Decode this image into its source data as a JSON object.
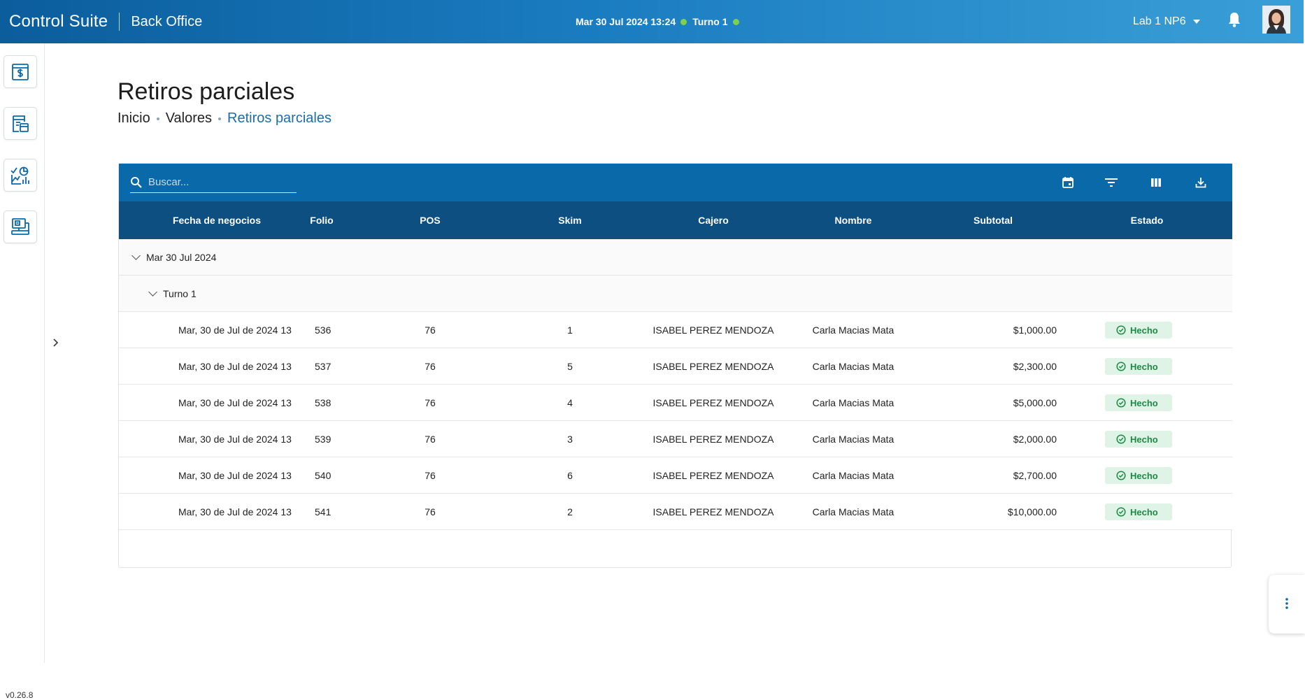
{
  "header": {
    "app_title": "Control Suite",
    "module": "Back Office",
    "datetime": "Mar 30 Jul 2024 13:24",
    "shift": "Turno 1",
    "branch": "Lab 1 NP6",
    "status_color": "#7cd34a"
  },
  "sidebar": {
    "items": [
      {
        "name": "cash-document-icon"
      },
      {
        "name": "report-icon"
      },
      {
        "name": "analytics-icon"
      },
      {
        "name": "pos-terminal-icon"
      }
    ],
    "version": "v0.26.8"
  },
  "page": {
    "title": "Retiros parciales",
    "breadcrumb": [
      "Inicio",
      "Valores",
      "Retiros parciales"
    ]
  },
  "toolbar": {
    "search_placeholder": "Buscar...",
    "tools": [
      "calendar-icon",
      "filter-icon",
      "columns-icon",
      "download-icon"
    ]
  },
  "table": {
    "columns": [
      "Fecha de negocios",
      "Folio",
      "POS",
      "Skim",
      "Cajero",
      "Nombre",
      "Subtotal",
      "Estado"
    ],
    "group_date": "Mar 30 Jul 2024",
    "group_shift": "Turno 1",
    "rows": [
      {
        "fecha": "Mar, 30 de Jul de 2024 13",
        "folio": "536",
        "pos": "76",
        "skim": "1",
        "cajero": "ISABEL PEREZ MENDOZA",
        "nombre": "Carla Macias Mata",
        "subtotal": "$1,000.00",
        "estado": "Hecho"
      },
      {
        "fecha": "Mar, 30 de Jul de 2024 13",
        "folio": "537",
        "pos": "76",
        "skim": "5",
        "cajero": "ISABEL PEREZ MENDOZA",
        "nombre": "Carla Macias Mata",
        "subtotal": "$2,300.00",
        "estado": "Hecho"
      },
      {
        "fecha": "Mar, 30 de Jul de 2024 13",
        "folio": "538",
        "pos": "76",
        "skim": "4",
        "cajero": "ISABEL PEREZ MENDOZA",
        "nombre": "Carla Macias Mata",
        "subtotal": "$5,000.00",
        "estado": "Hecho"
      },
      {
        "fecha": "Mar, 30 de Jul de 2024 13",
        "folio": "539",
        "pos": "76",
        "skim": "3",
        "cajero": "ISABEL PEREZ MENDOZA",
        "nombre": "Carla Macias Mata",
        "subtotal": "$2,000.00",
        "estado": "Hecho"
      },
      {
        "fecha": "Mar, 30 de Jul de 2024 13",
        "folio": "540",
        "pos": "76",
        "skim": "6",
        "cajero": "ISABEL PEREZ MENDOZA",
        "nombre": "Carla Macias Mata",
        "subtotal": "$2,700.00",
        "estado": "Hecho"
      },
      {
        "fecha": "Mar, 30 de Jul de 2024 13",
        "folio": "541",
        "pos": "76",
        "skim": "2",
        "cajero": "ISABEL PEREZ MENDOZA",
        "nombre": "Carla Macias Mata",
        "subtotal": "$10,000.00",
        "estado": "Hecho"
      }
    ]
  },
  "colors": {
    "toolbar": "#0a69a9",
    "table_header": "#0c4f80",
    "badge_bg": "#dff3e6",
    "badge_text": "#1c8a45",
    "link": "#1a6fa8"
  }
}
